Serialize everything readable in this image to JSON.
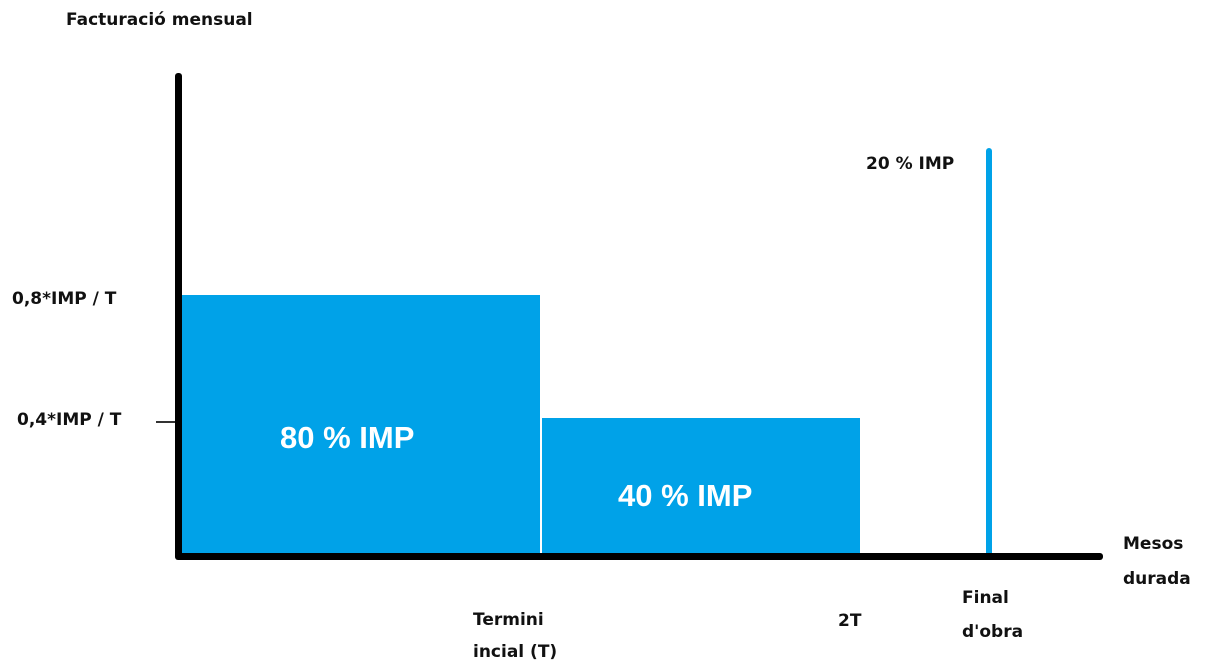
{
  "diagram": {
    "y_axis_title": "Facturació mensual",
    "x_axis_title_line1": "Mesos",
    "x_axis_title_line2": "durada",
    "y_labels": {
      "high": "0,8*IMP / T",
      "low": "0,4*IMP / T"
    },
    "x_labels": {
      "t_line1": "Termini",
      "t_line2": "incial (T)",
      "two_t": "2T",
      "end_line1": "Final",
      "end_line2": "d'obra"
    },
    "blocks": [
      {
        "label": "80 % IMP",
        "color": "#00a2e8"
      },
      {
        "label": "40 % IMP",
        "color": "#00a2e8"
      }
    ],
    "final_payment": {
      "label": "20 % IMP",
      "color": "#00a2e8"
    }
  }
}
